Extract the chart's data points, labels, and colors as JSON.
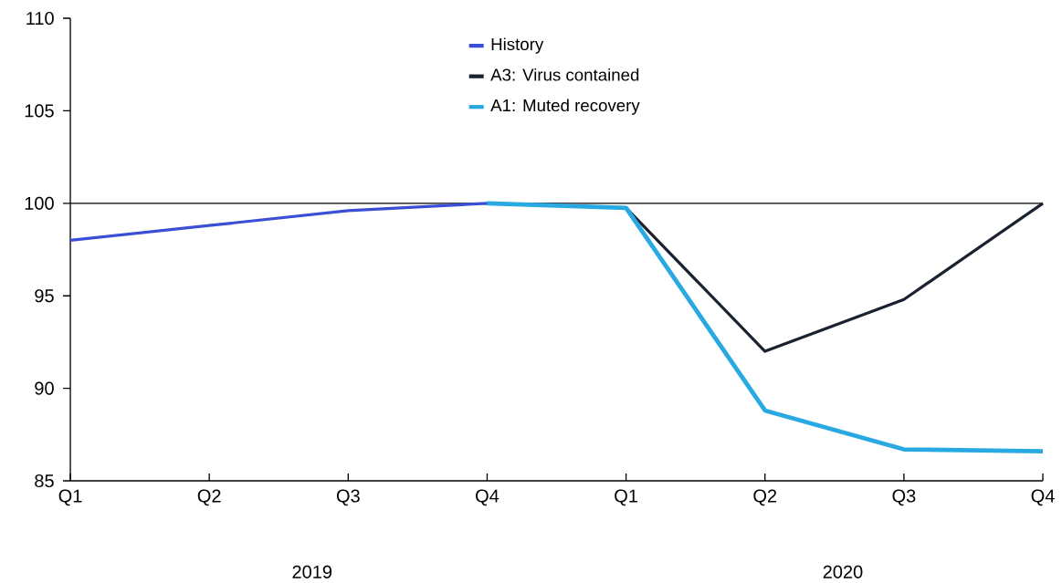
{
  "chart_data": {
    "type": "line",
    "categories": [
      "Q1",
      "Q2",
      "Q3",
      "Q4",
      "Q1",
      "Q2",
      "Q3",
      "Q4"
    ],
    "series": [
      {
        "name": "History",
        "color": "#3b4fd6",
        "values": [
          98.0,
          98.8,
          99.6,
          100.0,
          99.75,
          null,
          null,
          null
        ]
      },
      {
        "name": "A3: Virus contained",
        "color": "#1a2230",
        "values": [
          null,
          null,
          null,
          null,
          99.75,
          92.0,
          94.8,
          100.0
        ]
      },
      {
        "name": "A1: Muted recovery",
        "color": "#29a9e1",
        "values": [
          null,
          null,
          null,
          100.0,
          99.75,
          88.8,
          86.7,
          86.6
        ]
      }
    ],
    "ylim": [
      85,
      110
    ],
    "yticks": [
      85,
      90,
      95,
      100,
      105,
      110
    ],
    "ref_lines": [
      {
        "axis": "y",
        "value": 100,
        "color": "#000000"
      }
    ],
    "annotations": [
      "2019",
      "2020"
    ],
    "legend": "top",
    "grid": false,
    "marker": "none",
    "line_style": "solid"
  }
}
